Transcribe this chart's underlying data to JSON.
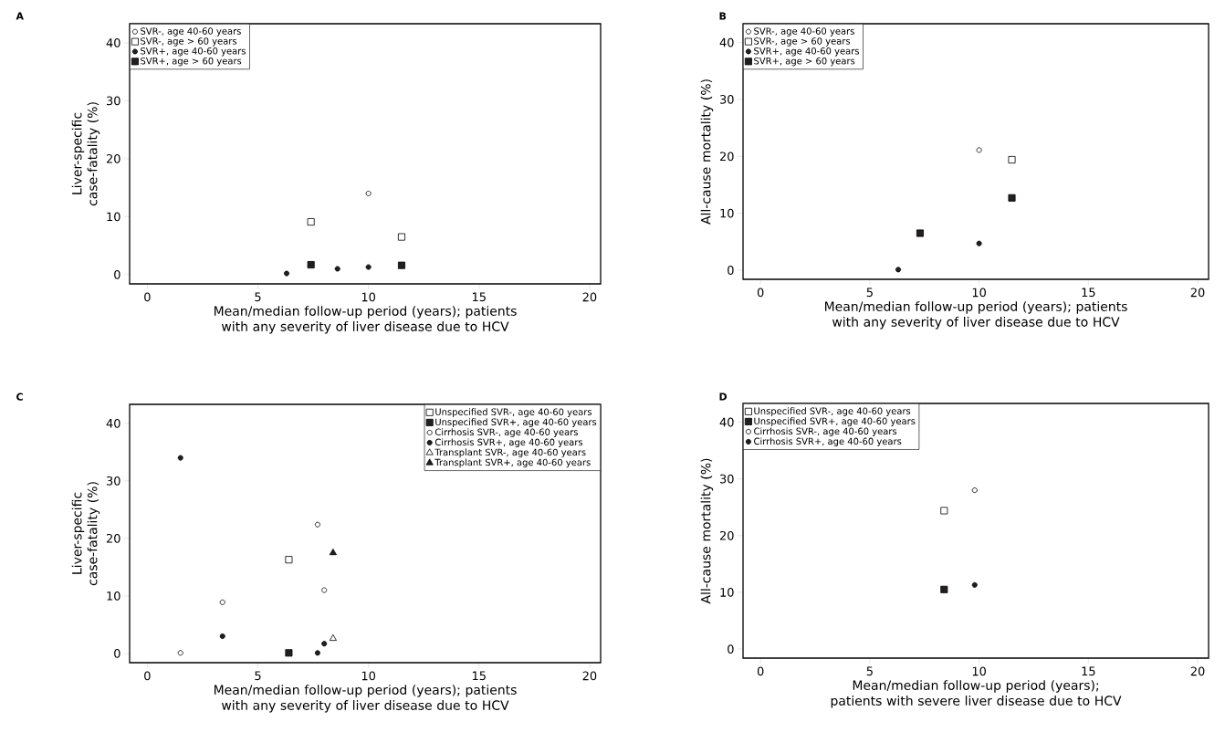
{
  "chart_data": [
    {
      "type": "scatter",
      "annotations": [
        "A"
      ],
      "xlabel": "Mean/median follow-up period (years); patients with any severity of liver disease due to HCV",
      "ylabel": "Liver-specific case-fatality (%)",
      "xlim": [
        -0.8,
        20.5
      ],
      "ylim": [
        -1.6,
        43.3
      ],
      "xticks": [
        0,
        5,
        10,
        15,
        20
      ],
      "yticks": [
        0,
        10,
        20,
        30,
        40
      ],
      "legend": "top left",
      "series": [
        {
          "name": "SVR-, age 40-60 years",
          "color": "#ffffff",
          "marker": "circle",
          "x": [
            10.0
          ],
          "values": [
            14.0
          ]
        },
        {
          "name": "SVR-, age > 60 years",
          "color": "#ffffff",
          "marker": "square",
          "x": [
            7.4,
            11.5
          ],
          "values": [
            9.1,
            6.5
          ]
        },
        {
          "name": "SVR+, age 40-60 years",
          "color": "#231f20",
          "marker": "circle",
          "x": [
            6.3,
            8.6,
            10.0
          ],
          "values": [
            0.2,
            1.0,
            1.3
          ]
        },
        {
          "name": "SVR+, age > 60 years",
          "color": "#231f20",
          "marker": "square",
          "x": [
            7.4,
            11.5
          ],
          "values": [
            1.7,
            1.6
          ]
        }
      ]
    },
    {
      "type": "scatter",
      "annotations": [
        "B"
      ],
      "xlabel": "Mean/median follow-up period (years); patients with any severity of liver disease due to HCV",
      "ylabel": "All-cause mortality (%)",
      "xlim": [
        -0.8,
        20.5
      ],
      "ylim": [
        -1.6,
        43.3
      ],
      "xticks": [
        0,
        5,
        10,
        15,
        20
      ],
      "yticks": [
        0,
        10,
        20,
        30,
        40
      ],
      "legend": "top left",
      "series": [
        {
          "name": "SVR-, age 40-60 years",
          "color": "#ffffff",
          "marker": "circle",
          "x": [
            10.0
          ],
          "values": [
            21.1
          ]
        },
        {
          "name": "SVR-, age > 60 years",
          "color": "#ffffff",
          "marker": "square",
          "x": [
            11.5
          ],
          "values": [
            19.4
          ]
        },
        {
          "name": "SVR+, age 40-60 years",
          "color": "#231f20",
          "marker": "circle",
          "x": [
            6.3,
            10.0
          ],
          "values": [
            0.1,
            4.7
          ]
        },
        {
          "name": "SVR+, age > 60 years",
          "color": "#231f20",
          "marker": "square",
          "x": [
            7.3,
            11.5
          ],
          "values": [
            6.5,
            12.7
          ]
        }
      ]
    },
    {
      "type": "scatter",
      "annotations": [
        "C"
      ],
      "xlabel": "Mean/median follow-up period (years); patients with any severity of liver disease due to HCV",
      "ylabel": "Liver-specific case-fatality (%)",
      "xlim": [
        -0.8,
        20.5
      ],
      "ylim": [
        -1.6,
        43.3
      ],
      "xticks": [
        0,
        5,
        10,
        15,
        20
      ],
      "yticks": [
        0,
        10,
        20,
        30,
        40
      ],
      "legend": "top right",
      "series": [
        {
          "name": "Unspecified SVR-, age 40-60 years",
          "color": "#ffffff",
          "marker": "square",
          "x": [
            6.4
          ],
          "values": [
            16.3
          ]
        },
        {
          "name": "Unspecified SVR+, age 40-60 years",
          "color": "#231f20",
          "marker": "square",
          "x": [
            6.4
          ],
          "values": [
            0.1
          ]
        },
        {
          "name": "Cirrhosis SVR-, age 40-60 years",
          "color": "#ffffff",
          "marker": "circle",
          "x": [
            1.5,
            3.4,
            7.7,
            8.0
          ],
          "values": [
            0.1,
            8.9,
            22.4,
            11.0
          ]
        },
        {
          "name": "Cirrhosis SVR+, age 40-60 years",
          "color": "#231f20",
          "marker": "circle",
          "x": [
            1.5,
            3.4,
            7.7,
            8.0
          ],
          "values": [
            34.0,
            3.0,
            0.1,
            1.7
          ]
        },
        {
          "name": "Transplant SVR-, age 40-60 years",
          "color": "#ffffff",
          "marker": "triangle",
          "x": [
            8.4
          ],
          "values": [
            2.6
          ]
        },
        {
          "name": "Transplant SVR+, age 40-60 years",
          "color": "#231f20",
          "marker": "triangle",
          "x": [
            8.4
          ],
          "values": [
            17.5
          ]
        }
      ]
    },
    {
      "type": "scatter",
      "annotations": [
        "D"
      ],
      "xlabel": "Mean/median follow-up period (years); patients with severe liver disease due to HCV",
      "ylabel": "All-cause mortality (%)",
      "xlim": [
        -0.8,
        20.5
      ],
      "ylim": [
        -1.6,
        43.3
      ],
      "xticks": [
        0,
        5,
        10,
        15,
        20
      ],
      "yticks": [
        0,
        10,
        20,
        30,
        40
      ],
      "legend": "top left",
      "series": [
        {
          "name": "Unspecified SVR-, age 40-60 years",
          "color": "#ffffff",
          "marker": "square",
          "x": [
            8.4
          ],
          "values": [
            24.4
          ]
        },
        {
          "name": "Unspecified SVR+, age 40-60 years",
          "color": "#231f20",
          "marker": "square",
          "x": [
            8.4
          ],
          "values": [
            10.5
          ]
        },
        {
          "name": "Cirrhosis SVR-, age 40-60 years",
          "color": "#ffffff",
          "marker": "circle",
          "x": [
            9.8
          ],
          "values": [
            28.0
          ]
        },
        {
          "name": "Cirrhosis SVR+, age 40-60 years",
          "color": "#231f20",
          "marker": "circle",
          "x": [
            9.8
          ],
          "values": [
            11.3
          ]
        }
      ]
    }
  ]
}
